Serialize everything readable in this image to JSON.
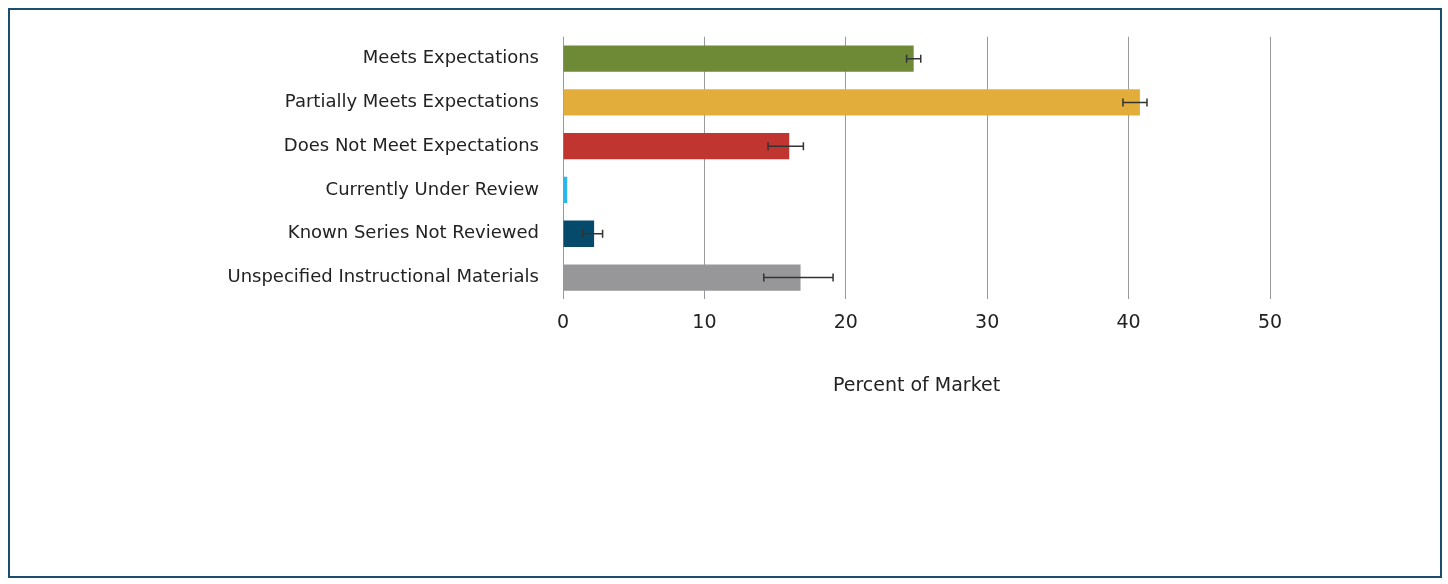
{
  "chart_data": {
    "type": "bar",
    "orientation": "horizontal",
    "xlabel": "Percent of Market",
    "categories": [
      "Meets Expectations",
      "Partially Meets Expectations",
      "Does Not Meet Expectations",
      "Currently Under Review",
      "Known Series Not Reviewed",
      "Unspecified Instructional Materials"
    ],
    "values": [
      24.8,
      40.8,
      16.0,
      0.3,
      2.2,
      16.8
    ],
    "colors": [
      "#6f8a36",
      "#e3ad3b",
      "#c0352f",
      "#2bb5e8",
      "#064a6b",
      "#97979a"
    ],
    "errors": [
      [
        24.3,
        25.3
      ],
      [
        39.6,
        41.3
      ],
      [
        14.5,
        17.0
      ],
      null,
      [
        1.4,
        2.8
      ],
      [
        14.2,
        19.1
      ]
    ],
    "xlim": [
      0,
      50
    ],
    "xticks": [
      0,
      10,
      20,
      30,
      40,
      50
    ],
    "grid": "x",
    "legend": false
  }
}
